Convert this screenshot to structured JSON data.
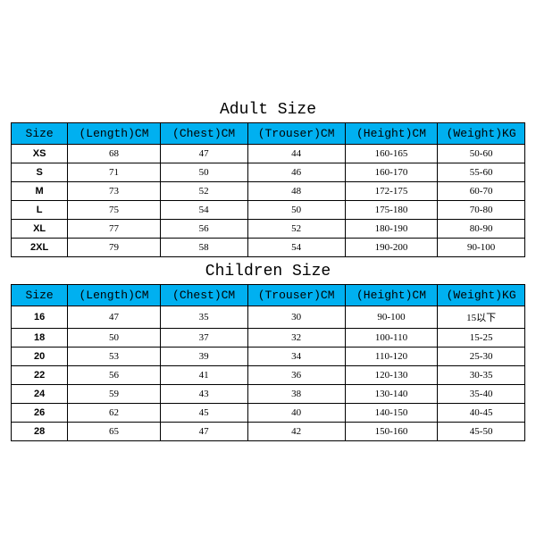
{
  "header_bg": "#00b0f0",
  "header_text_color": "#000000",
  "border_color": "#000000",
  "cell_bg": "#ffffff",
  "adult": {
    "title": "Adult Size",
    "columns": [
      "Size",
      "(Length)CM",
      "(Chest)CM",
      "(Trouser)CM",
      "(Height)CM",
      "(Weight)KG"
    ],
    "rows": [
      [
        "XS",
        "68",
        "47",
        "44",
        "160-165",
        "50-60"
      ],
      [
        "S",
        "71",
        "50",
        "46",
        "160-170",
        "55-60"
      ],
      [
        "M",
        "73",
        "52",
        "48",
        "172-175",
        "60-70"
      ],
      [
        "L",
        "75",
        "54",
        "50",
        "175-180",
        "70-80"
      ],
      [
        "XL",
        "77",
        "56",
        "52",
        "180-190",
        "80-90"
      ],
      [
        "2XL",
        "79",
        "58",
        "54",
        "190-200",
        "90-100"
      ]
    ]
  },
  "children": {
    "title": "Children Size",
    "columns": [
      "Size",
      "(Length)CM",
      "(Chest)CM",
      "(Trouser)CM",
      "(Height)CM",
      "(Weight)KG"
    ],
    "rows": [
      [
        "16",
        "47",
        "35",
        "30",
        "90-100",
        "15以下"
      ],
      [
        "18",
        "50",
        "37",
        "32",
        "100-110",
        "15-25"
      ],
      [
        "20",
        "53",
        "39",
        "34",
        "110-120",
        "25-30"
      ],
      [
        "22",
        "56",
        "41",
        "36",
        "120-130",
        "30-35"
      ],
      [
        "24",
        "59",
        "43",
        "38",
        "130-140",
        "35-40"
      ],
      [
        "26",
        "62",
        "45",
        "40",
        "140-150",
        "40-45"
      ],
      [
        "28",
        "65",
        "47",
        "42",
        "150-160",
        "45-50"
      ]
    ]
  }
}
